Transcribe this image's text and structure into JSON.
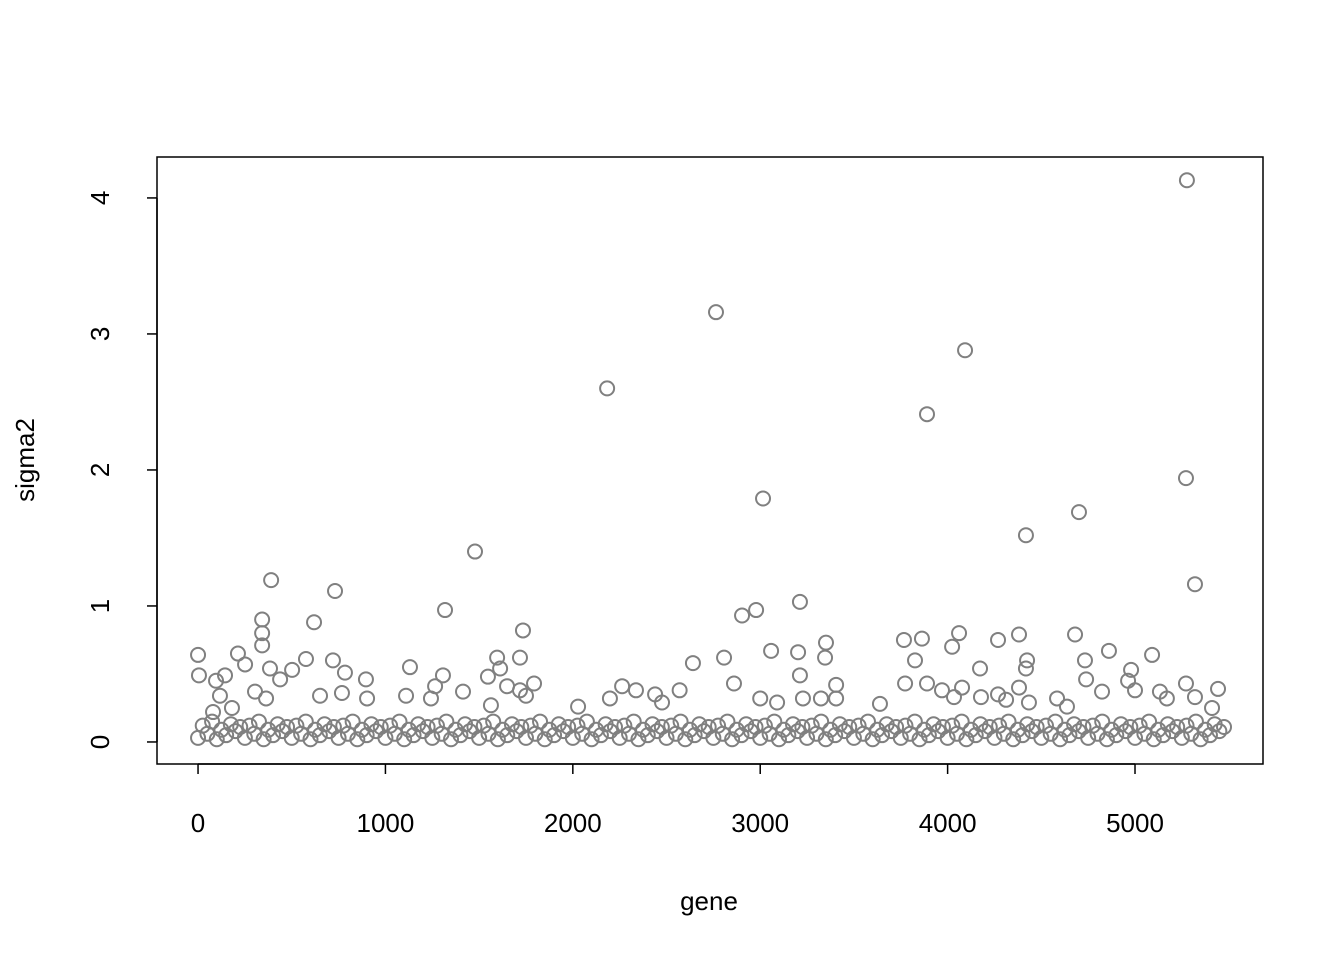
{
  "chart_data": {
    "type": "scatter",
    "x_label": "gene",
    "y_label": "sigma2",
    "color": "#808080",
    "xlim": [
      -219,
      5683
    ],
    "ylim": [
      -0.162,
      4.301
    ],
    "xticks": [
      0,
      1000,
      2000,
      3000,
      4000,
      5000
    ],
    "yticks": [
      0,
      1,
      2,
      3,
      4
    ],
    "x": [
      0,
      25,
      50,
      75,
      100,
      125,
      150,
      175,
      200,
      225,
      250,
      275,
      300,
      325,
      350,
      375,
      400,
      425,
      450,
      475,
      500,
      525,
      550,
      575,
      600,
      625,
      650,
      675,
      700,
      725,
      750,
      775,
      800,
      825,
      850,
      875,
      900,
      925,
      950,
      975,
      1000,
      1025,
      1050,
      1075,
      1100,
      1125,
      1150,
      1175,
      1200,
      1225,
      1250,
      1275,
      1300,
      1325,
      1350,
      1375,
      1400,
      1425,
      1450,
      1475,
      1500,
      1525,
      1550,
      1575,
      1600,
      1625,
      1650,
      1675,
      1700,
      1725,
      1750,
      1775,
      1800,
      1825,
      1850,
      1875,
      1900,
      1925,
      1950,
      1975,
      2000,
      2025,
      2050,
      2075,
      2100,
      2125,
      2150,
      2175,
      2200,
      2225,
      2250,
      2275,
      2300,
      2325,
      2350,
      2375,
      2400,
      2425,
      2450,
      2475,
      2500,
      2525,
      2550,
      2575,
      2600,
      2625,
      2650,
      2675,
      2700,
      2725,
      2750,
      2775,
      2800,
      2825,
      2850,
      2875,
      2900,
      2925,
      2950,
      2975,
      3000,
      3025,
      3050,
      3075,
      3100,
      3125,
      3150,
      3175,
      3200,
      3225,
      3250,
      3275,
      3300,
      3325,
      3350,
      3375,
      3400,
      3425,
      3450,
      3475,
      3500,
      3525,
      3550,
      3575,
      3600,
      3625,
      3650,
      3675,
      3700,
      3725,
      3750,
      3775,
      3800,
      3825,
      3850,
      3875,
      3900,
      3925,
      3950,
      3975,
      4000,
      4025,
      4050,
      4075,
      4100,
      4125,
      4150,
      4175,
      4200,
      4225,
      4250,
      4275,
      4300,
      4325,
      4350,
      4375,
      4400,
      4425,
      4450,
      4475,
      4500,
      4525,
      4550,
      4575,
      4600,
      4625,
      4650,
      4675,
      4700,
      4725,
      4750,
      4775,
      4800,
      4825,
      4850,
      4875,
      4900,
      4925,
      4950,
      4975,
      5000,
      5025,
      5050,
      5075,
      5100,
      5125,
      5150,
      5175,
      5200,
      5225,
      5250,
      5275,
      5300,
      5325,
      5350,
      5375,
      5400,
      5425,
      5450,
      5475,
      5277,
      2764,
      4093,
      2183,
      3890,
      5272,
      3015,
      4701,
      4418,
      1478,
      390,
      5320,
      731,
      3212,
      1318,
      2978,
      2903,
      342,
      619,
      1734,
      342,
      4061,
      4381,
      4680,
      3863,
      3767,
      4269,
      3351,
      342,
      4024,
      3058,
      4861,
      0,
      5091,
      213,
      3202,
      1718,
      4424,
      576,
      1596,
      2807,
      3826,
      3346,
      720,
      4733,
      2641,
      251,
      1131,
      4173,
      4418,
      1612,
      384,
      502,
      784,
      4979,
      5,
      144,
      1307,
      1547,
      3212,
      96,
      896,
      438,
      4739,
      4963,
      2263,
      2860,
      3890,
      3773,
      5272,
      1265,
      1649,
      4077,
      4381,
      1793,
      3405,
      1718,
      2337,
      1414,
      304,
      768,
      5443,
      2570,
      5000,
      2439,
      5133,
      3970,
      4269,
      4824,
      1750,
      651,
      117,
      1110,
      2198,
      3228,
      4584,
      3000,
      4034,
      4178,
      5320,
      5170,
      363,
      902,
      1243,
      3324,
      3405,
      4312,
      2476,
      3090,
      4434,
      3639,
      4637,
      1563,
      181,
      2028,
      5411,
      80
    ],
    "values": [
      0.03,
      0.12,
      0.06,
      0.15,
      0.02,
      0.09,
      0.05,
      0.13,
      0.08,
      0.11,
      0.03,
      0.12,
      0.06,
      0.15,
      0.02,
      0.09,
      0.05,
      0.13,
      0.08,
      0.11,
      0.03,
      0.12,
      0.06,
      0.15,
      0.02,
      0.09,
      0.05,
      0.13,
      0.08,
      0.11,
      0.03,
      0.12,
      0.06,
      0.15,
      0.02,
      0.09,
      0.05,
      0.13,
      0.08,
      0.11,
      0.03,
      0.12,
      0.06,
      0.15,
      0.02,
      0.09,
      0.05,
      0.13,
      0.08,
      0.11,
      0.03,
      0.12,
      0.06,
      0.15,
      0.02,
      0.09,
      0.05,
      0.13,
      0.08,
      0.11,
      0.03,
      0.12,
      0.06,
      0.15,
      0.02,
      0.09,
      0.05,
      0.13,
      0.08,
      0.11,
      0.03,
      0.12,
      0.06,
      0.15,
      0.02,
      0.09,
      0.05,
      0.13,
      0.08,
      0.11,
      0.03,
      0.12,
      0.06,
      0.15,
      0.02,
      0.09,
      0.05,
      0.13,
      0.08,
      0.11,
      0.03,
      0.12,
      0.06,
      0.15,
      0.02,
      0.09,
      0.05,
      0.13,
      0.08,
      0.11,
      0.03,
      0.12,
      0.06,
      0.15,
      0.02,
      0.09,
      0.05,
      0.13,
      0.08,
      0.11,
      0.03,
      0.12,
      0.06,
      0.15,
      0.02,
      0.09,
      0.05,
      0.13,
      0.08,
      0.11,
      0.03,
      0.12,
      0.06,
      0.15,
      0.02,
      0.09,
      0.05,
      0.13,
      0.08,
      0.11,
      0.03,
      0.12,
      0.06,
      0.15,
      0.02,
      0.09,
      0.05,
      0.13,
      0.08,
      0.11,
      0.03,
      0.12,
      0.06,
      0.15,
      0.02,
      0.09,
      0.05,
      0.13,
      0.08,
      0.11,
      0.03,
      0.12,
      0.06,
      0.15,
      0.02,
      0.09,
      0.05,
      0.13,
      0.08,
      0.11,
      0.03,
      0.12,
      0.06,
      0.15,
      0.02,
      0.09,
      0.05,
      0.13,
      0.08,
      0.11,
      0.03,
      0.12,
      0.06,
      0.15,
      0.02,
      0.09,
      0.05,
      0.13,
      0.08,
      0.11,
      0.03,
      0.12,
      0.06,
      0.15,
      0.02,
      0.09,
      0.05,
      0.13,
      0.08,
      0.11,
      0.03,
      0.12,
      0.06,
      0.15,
      0.02,
      0.09,
      0.05,
      0.13,
      0.08,
      0.11,
      0.03,
      0.12,
      0.06,
      0.15,
      0.02,
      0.09,
      0.05,
      0.13,
      0.08,
      0.11,
      0.03,
      0.12,
      0.06,
      0.15,
      0.02,
      0.09,
      0.05,
      0.13,
      0.08,
      0.11,
      4.13,
      3.16,
      2.88,
      2.6,
      2.41,
      1.94,
      1.79,
      1.69,
      1.52,
      1.4,
      1.19,
      1.16,
      1.11,
      1.03,
      0.97,
      0.97,
      0.93,
      0.9,
      0.88,
      0.82,
      0.8,
      0.8,
      0.79,
      0.79,
      0.76,
      0.75,
      0.75,
      0.73,
      0.71,
      0.7,
      0.67,
      0.67,
      0.64,
      0.64,
      0.65,
      0.66,
      0.62,
      0.6,
      0.61,
      0.62,
      0.62,
      0.6,
      0.62,
      0.6,
      0.6,
      0.58,
      0.57,
      0.55,
      0.54,
      0.54,
      0.54,
      0.54,
      0.53,
      0.51,
      0.53,
      0.49,
      0.49,
      0.49,
      0.48,
      0.49,
      0.45,
      0.46,
      0.46,
      0.46,
      0.45,
      0.41,
      0.43,
      0.43,
      0.43,
      0.43,
      0.41,
      0.41,
      0.4,
      0.4,
      0.43,
      0.42,
      0.38,
      0.38,
      0.37,
      0.37,
      0.36,
      0.39,
      0.38,
      0.38,
      0.35,
      0.37,
      0.38,
      0.35,
      0.37,
      0.34,
      0.34,
      0.34,
      0.34,
      0.32,
      0.32,
      0.32,
      0.32,
      0.33,
      0.33,
      0.33,
      0.32,
      0.32,
      0.32,
      0.32,
      0.32,
      0.32,
      0.31,
      0.29,
      0.29,
      0.29,
      0.28,
      0.26,
      0.27,
      0.25,
      0.26,
      0.25,
      0.22
    ]
  }
}
